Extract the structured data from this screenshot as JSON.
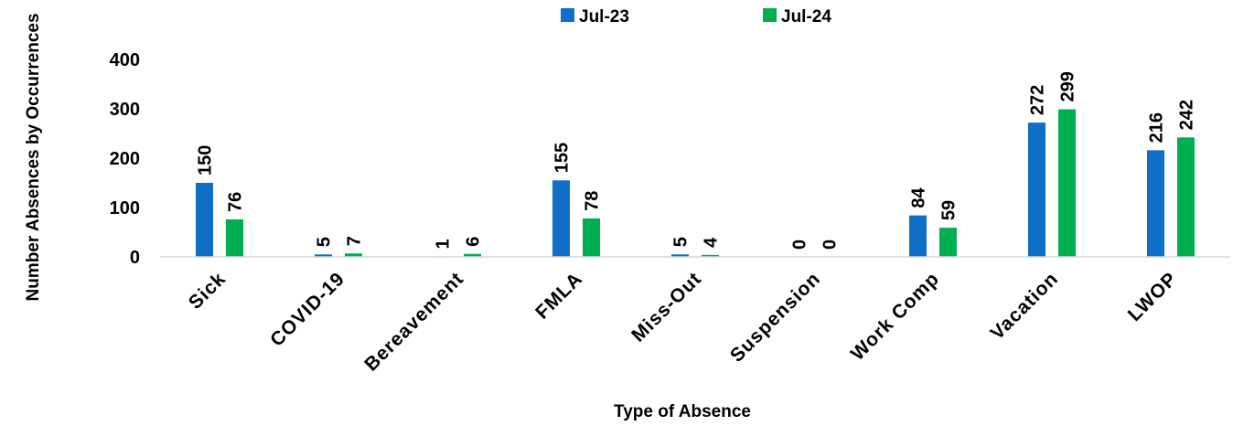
{
  "chart_data": {
    "type": "bar",
    "xlabel": "Type of Absence",
    "ylabel": "Number Absences by Occurrences",
    "ylim": [
      0,
      400
    ],
    "yticks": [
      0,
      100,
      200,
      300,
      400
    ],
    "grid": false,
    "legend_position": "top",
    "categories": [
      "Sick",
      "COVID-19",
      "Bereavement",
      "FMLA",
      "Miss-Out",
      "Suspension",
      "Work Comp",
      "Vacation",
      "LWOP"
    ],
    "series": [
      {
        "name": "Jul-23",
        "color": "#0f6fc6",
        "values": [
          150,
          5,
          1,
          155,
          5,
          0,
          84,
          272,
          216
        ]
      },
      {
        "name": "Jul-24",
        "color": "#00b050",
        "values": [
          76,
          7,
          6,
          78,
          4,
          0,
          59,
          299,
          242
        ]
      }
    ]
  }
}
